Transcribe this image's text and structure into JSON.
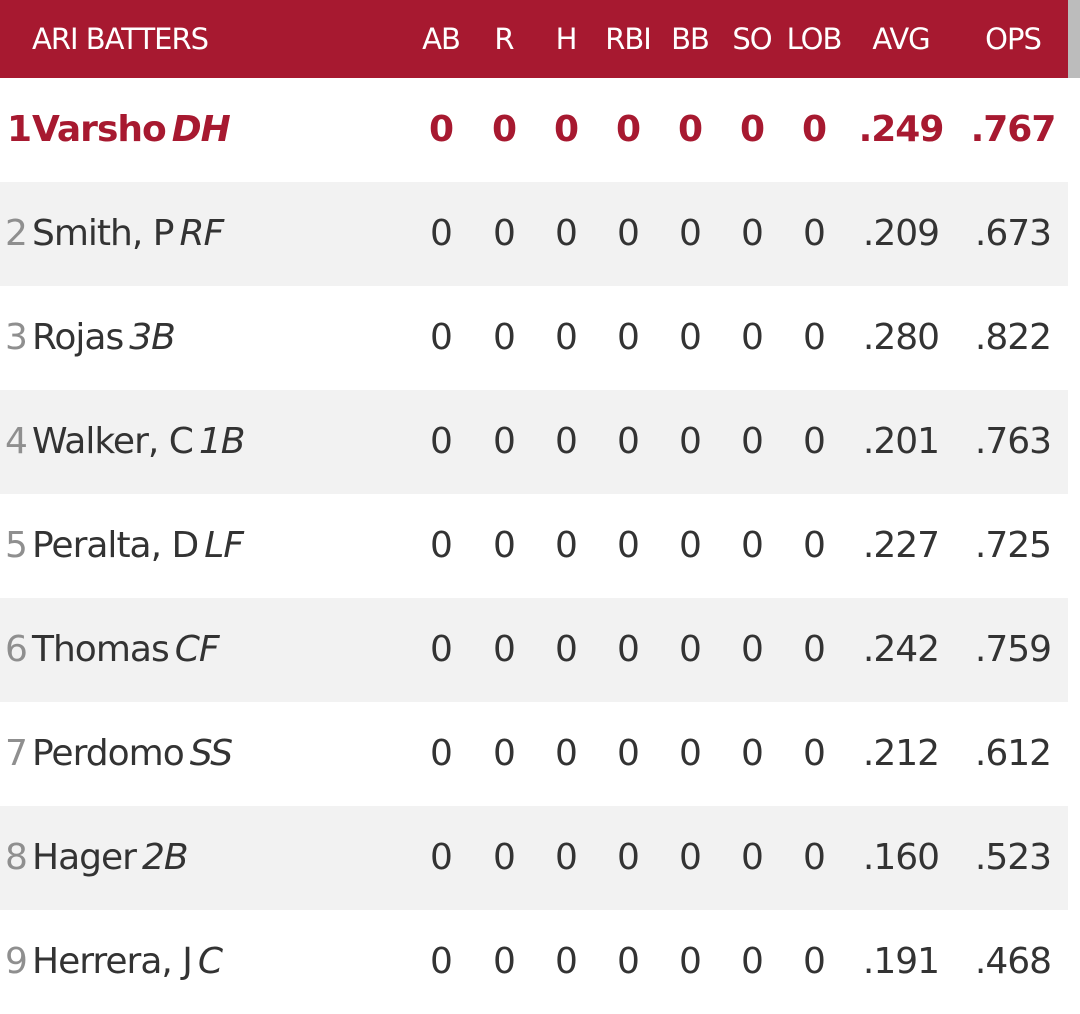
{
  "header": {
    "title": "ARI BATTERS",
    "columns": [
      "AB",
      "R",
      "H",
      "RBI",
      "BB",
      "SO",
      "LOB",
      "AVG",
      "OPS"
    ]
  },
  "colors": {
    "header_bg": "#a71930",
    "header_text": "#ffffff",
    "active_row_text": "#a71930",
    "row_text": "#333333",
    "order_number": "#8f8f8f",
    "row_shade": "#f2f2f2"
  },
  "batters": [
    {
      "order": "1",
      "name": "Varsho",
      "pos": "DH",
      "ab": "0",
      "r": "0",
      "h": "0",
      "rbi": "0",
      "bb": "0",
      "so": "0",
      "lob": "0",
      "avg": ".249",
      "ops": ".767"
    },
    {
      "order": "2",
      "name": "Smith, P",
      "pos": "RF",
      "ab": "0",
      "r": "0",
      "h": "0",
      "rbi": "0",
      "bb": "0",
      "so": "0",
      "lob": "0",
      "avg": ".209",
      "ops": ".673"
    },
    {
      "order": "3",
      "name": "Rojas",
      "pos": "3B",
      "ab": "0",
      "r": "0",
      "h": "0",
      "rbi": "0",
      "bb": "0",
      "so": "0",
      "lob": "0",
      "avg": ".280",
      "ops": ".822"
    },
    {
      "order": "4",
      "name": "Walker, C",
      "pos": "1B",
      "ab": "0",
      "r": "0",
      "h": "0",
      "rbi": "0",
      "bb": "0",
      "so": "0",
      "lob": "0",
      "avg": ".201",
      "ops": ".763"
    },
    {
      "order": "5",
      "name": "Peralta, D",
      "pos": "LF",
      "ab": "0",
      "r": "0",
      "h": "0",
      "rbi": "0",
      "bb": "0",
      "so": "0",
      "lob": "0",
      "avg": ".227",
      "ops": ".725"
    },
    {
      "order": "6",
      "name": "Thomas",
      "pos": "CF",
      "ab": "0",
      "r": "0",
      "h": "0",
      "rbi": "0",
      "bb": "0",
      "so": "0",
      "lob": "0",
      "avg": ".242",
      "ops": ".759"
    },
    {
      "order": "7",
      "name": "Perdomo",
      "pos": "SS",
      "ab": "0",
      "r": "0",
      "h": "0",
      "rbi": "0",
      "bb": "0",
      "so": "0",
      "lob": "0",
      "avg": ".212",
      "ops": ".612"
    },
    {
      "order": "8",
      "name": "Hager",
      "pos": "2B",
      "ab": "0",
      "r": "0",
      "h": "0",
      "rbi": "0",
      "bb": "0",
      "so": "0",
      "lob": "0",
      "avg": ".160",
      "ops": ".523"
    },
    {
      "order": "9",
      "name": "Herrera, J",
      "pos": "C",
      "ab": "0",
      "r": "0",
      "h": "0",
      "rbi": "0",
      "bb": "0",
      "so": "0",
      "lob": "0",
      "avg": ".191",
      "ops": ".468"
    }
  ]
}
